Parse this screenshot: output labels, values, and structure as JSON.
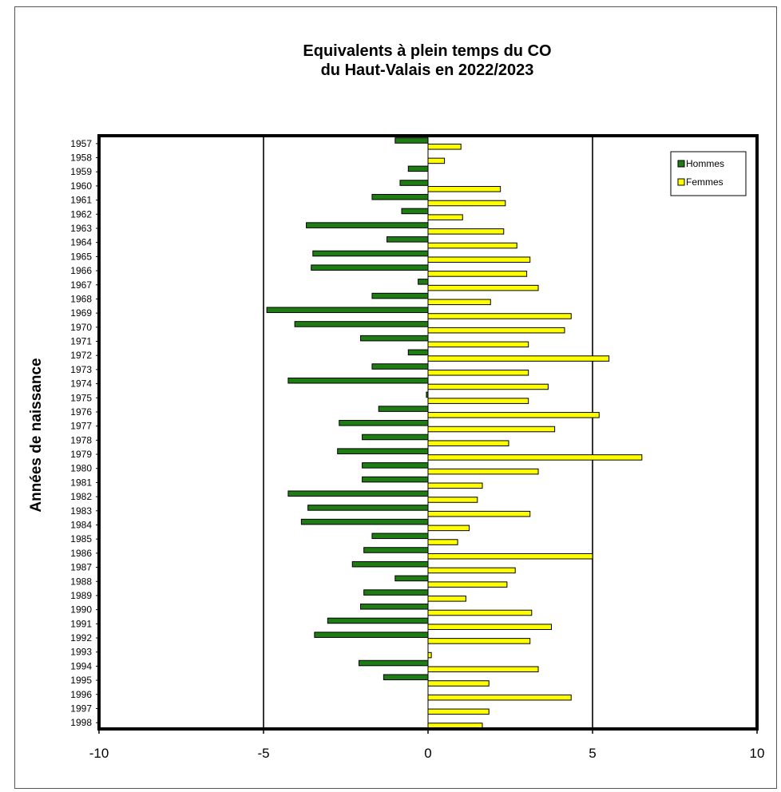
{
  "chart_data": {
    "type": "bar",
    "orientation": "horizontal",
    "title": [
      "Equivalents à plein temps du CO",
      "du Haut-Valais en 2022/2023"
    ],
    "xlabel": "",
    "ylabel": "Années de naissance",
    "xlim": [
      -10,
      10
    ],
    "xticks": [
      "-10",
      "-5",
      "0",
      "5",
      "10"
    ],
    "x_tick_values": [
      -10,
      -5,
      0,
      5,
      10
    ],
    "grid": true,
    "legend_position": "top-right",
    "categories": [
      "1957",
      "1958",
      "1959",
      "1960",
      "1961",
      "1962",
      "1963",
      "1964",
      "1965",
      "1966",
      "1967",
      "1968",
      "1969",
      "1970",
      "1971",
      "1972",
      "1973",
      "1974",
      "1975",
      "1976",
      "1977",
      "1978",
      "1979",
      "1980",
      "1981",
      "1982",
      "1983",
      "1984",
      "1985",
      "1986",
      "1987",
      "1988",
      "1989",
      "1990",
      "1991",
      "1992",
      "1993",
      "1994",
      "1995",
      "1996",
      "1997",
      "1998"
    ],
    "series": [
      {
        "name": "Hommes",
        "color": "#1e7d12",
        "values": [
          -1.0,
          0,
          -0.6,
          -0.85,
          -1.7,
          -0.8,
          -3.7,
          -1.25,
          -3.5,
          -3.55,
          -0.3,
          -1.7,
          -4.9,
          -4.05,
          -2.05,
          -0.6,
          -1.7,
          -4.25,
          -0.05,
          -1.5,
          -2.7,
          -2.0,
          -2.75,
          -2.0,
          -2.0,
          -4.25,
          -3.65,
          -3.85,
          -1.7,
          -1.95,
          -2.3,
          -1.0,
          -1.95,
          -2.05,
          -3.05,
          -3.45,
          0,
          -2.1,
          -1.35,
          0,
          0,
          0
        ]
      },
      {
        "name": "Femmes",
        "color": "#ffff00",
        "values": [
          1.0,
          0.5,
          0,
          2.2,
          2.35,
          1.05,
          2.3,
          2.7,
          3.1,
          3.0,
          3.35,
          1.9,
          4.35,
          4.15,
          3.05,
          5.5,
          3.05,
          3.65,
          3.05,
          5.2,
          3.85,
          2.45,
          6.5,
          3.35,
          1.65,
          1.5,
          3.1,
          1.25,
          0.9,
          5.0,
          2.65,
          2.4,
          1.15,
          3.15,
          3.75,
          3.1,
          0.1,
          3.35,
          1.85,
          4.35,
          1.85,
          1.65
        ]
      }
    ]
  }
}
